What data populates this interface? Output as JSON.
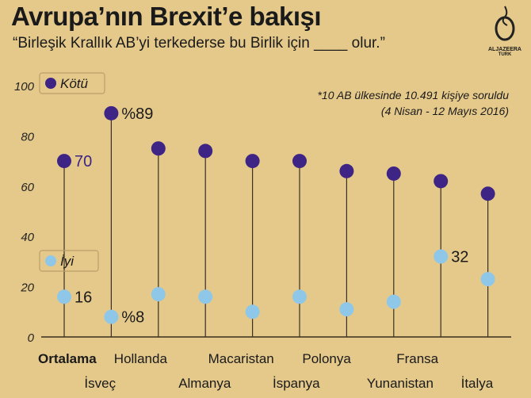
{
  "header": {
    "title": "Avrupa’nın Brexit’e bakışı",
    "subtitle": "“Birleşik Krallık AB’yi terkederse bu Birlik için ____  olur.”"
  },
  "note": {
    "line1": "*10 AB ülkesinde 10.491 kişiye soruldu",
    "line2": "(4 Nisan  - 12 Mayıs  2016)"
  },
  "logo": {
    "name": "ALJAZEERA",
    "sub": "TURK"
  },
  "colors": {
    "background": "#e5c98b",
    "kotu": "#3d2485",
    "iyi": "#8fc7e8",
    "stem": "#3a2f20"
  },
  "chart_data": {
    "type": "lollipop",
    "ylim": [
      0,
      100
    ],
    "yticks": [
      0,
      20,
      40,
      60,
      80,
      100
    ],
    "grid": false,
    "legend_placement": "left",
    "categories": [
      "Ortalama",
      "İsveç",
      "Hollanda",
      "Almanya",
      "Macaristan",
      "İspanya",
      "Polonya",
      "Yunanistan",
      "Fransa",
      "İtalya"
    ],
    "series": [
      {
        "name": "Kötü",
        "values": [
          70,
          89,
          75,
          74,
          70,
          70,
          66,
          65,
          62,
          57
        ]
      },
      {
        "name": "İyi",
        "values": [
          16,
          8,
          17,
          16,
          10,
          16,
          11,
          14,
          32,
          23
        ]
      }
    ],
    "data_labels": [
      {
        "series": "Kötü",
        "category": "Ortalama",
        "text": "70"
      },
      {
        "series": "Kötü",
        "category": "İsveç",
        "text": "%89"
      },
      {
        "series": "İyi",
        "category": "Ortalama",
        "text": "16"
      },
      {
        "series": "İyi",
        "category": "İsveç",
        "text": "%8"
      },
      {
        "series": "İyi",
        "category": "Fransa",
        "text": "32"
      }
    ]
  }
}
